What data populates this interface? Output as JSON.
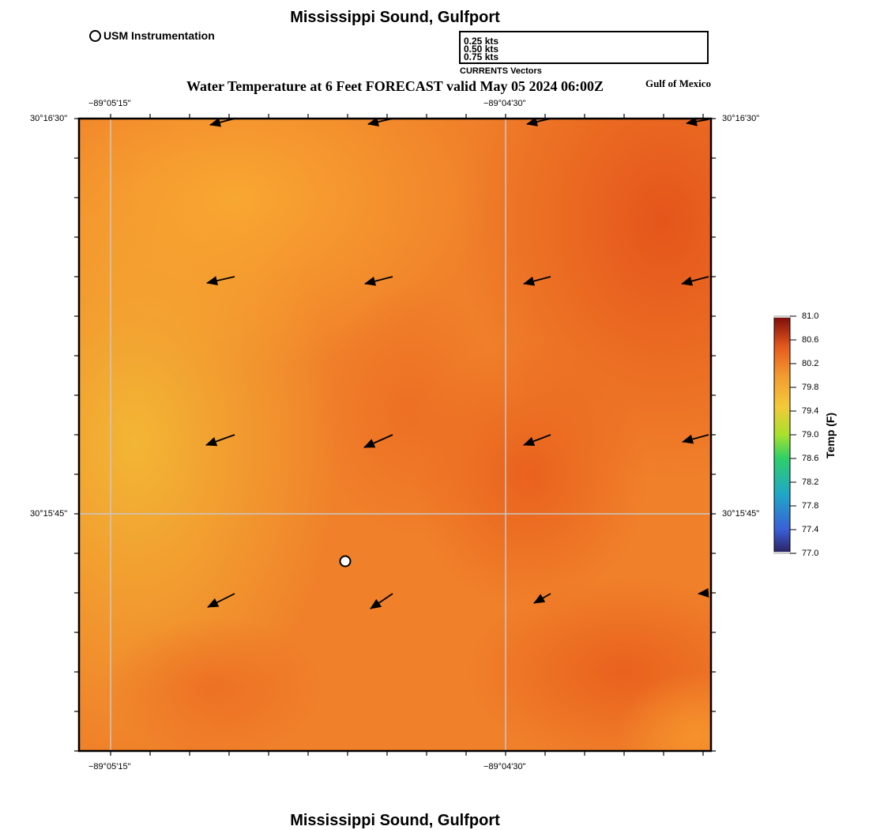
{
  "title": "Mississippi Sound, Gulfport",
  "subtitle": "Water Temperature at 6 Feet FORECAST valid May 05 2024 06:00Z",
  "region": "Gulf of Mexico",
  "station_legend": "USM Instrumentation",
  "vector_legend": {
    "labels": [
      "0.25 kts",
      "0.50 kts",
      "0.75 kts"
    ],
    "caption": "CURRENTS Vectors"
  },
  "axes": {
    "lon_labels": [
      "−89°05'15\"",
      "−89°04'30\""
    ],
    "lat_labels": [
      "30°16'30\"",
      "30°15'45\""
    ]
  },
  "colorbar": {
    "title": "Temp (F)",
    "ticks": [
      "81.0",
      "80.6",
      "80.2",
      "79.8",
      "79.4",
      "79.0",
      "78.6",
      "78.2",
      "77.8",
      "77.4",
      "77.0"
    ]
  },
  "colors": {
    "warm_light": "#f7a535",
    "warm_mid": "#f07a24",
    "warm_dark": "#e85a18",
    "grid": "#c8c8c8"
  }
}
